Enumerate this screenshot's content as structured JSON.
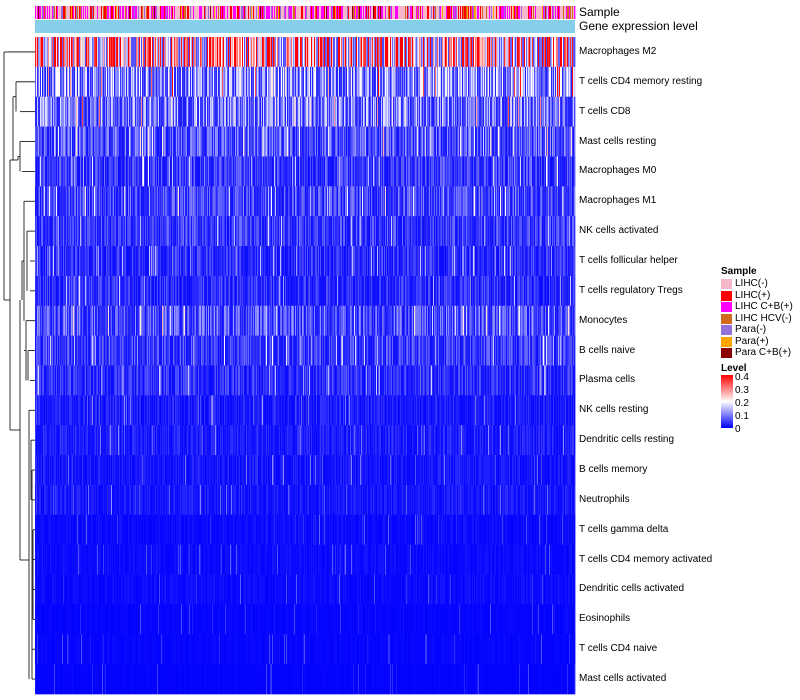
{
  "chart_data": {
    "type": "heatmap",
    "title": "",
    "annotation_tracks": [
      {
        "name": "Sample"
      },
      {
        "name": "Gene expression level"
      }
    ],
    "rows": [
      {
        "label": "Macrophages M2",
        "mean": 0.28
      },
      {
        "label": "T cells CD4 memory resting",
        "mean": 0.12
      },
      {
        "label": "T cells CD8",
        "mean": 0.1
      },
      {
        "label": "Mast cells resting",
        "mean": 0.07
      },
      {
        "label": "Macrophages M0",
        "mean": 0.05
      },
      {
        "label": "Macrophages M1",
        "mean": 0.06
      },
      {
        "label": "NK cells activated",
        "mean": 0.05
      },
      {
        "label": "T cells follicular helper",
        "mean": 0.04
      },
      {
        "label": "T cells regulatory  Tregs",
        "mean": 0.04
      },
      {
        "label": "Monocytes",
        "mean": 0.07
      },
      {
        "label": "B cells naive",
        "mean": 0.05
      },
      {
        "label": "Plasma cells",
        "mean": 0.04
      },
      {
        "label": "NK cells resting",
        "mean": 0.025
      },
      {
        "label": "Dendritic cells resting",
        "mean": 0.025
      },
      {
        "label": "B cells memory",
        "mean": 0.02
      },
      {
        "label": "Neutrophils",
        "mean": 0.02
      },
      {
        "label": "T cells gamma delta",
        "mean": 0.01
      },
      {
        "label": "T cells CD4 memory activated",
        "mean": 0.01
      },
      {
        "label": "Dendritic cells activated",
        "mean": 0.01
      },
      {
        "label": "Eosinophils",
        "mean": 0.005
      },
      {
        "label": "T cells CD4 naive",
        "mean": 0.005
      },
      {
        "label": "Mast cells activated",
        "mean": 0.003
      }
    ],
    "sample_groups": [
      {
        "name": "LIHC(-)",
        "color": "#f6b8c8"
      },
      {
        "name": "LIHC(+)",
        "color": "#ff0000"
      },
      {
        "name": "LIHC C+B(+)",
        "color": "#ff00ff"
      },
      {
        "name": "LIHC HCV(-)",
        "color": "#d2691e"
      },
      {
        "name": "Para(-)",
        "color": "#9370db"
      },
      {
        "name": "Para(+)",
        "color": "#ffa500"
      },
      {
        "name": "Para C+B(+)",
        "color": "#8b0000"
      }
    ],
    "gene_expression_color": "#87ceeb",
    "legend_sample_title": "Sample",
    "legend_level_title": "Level",
    "level_ticks": [
      "0.4",
      "0.3",
      "0.2",
      "0.1",
      "0"
    ],
    "color_scale": {
      "min": 0,
      "mid": 0.2,
      "max": 0.4,
      "low": "#0000ff",
      "mid_color": "#ffffff",
      "high": "#ff0000"
    },
    "n_samples": 540
  }
}
